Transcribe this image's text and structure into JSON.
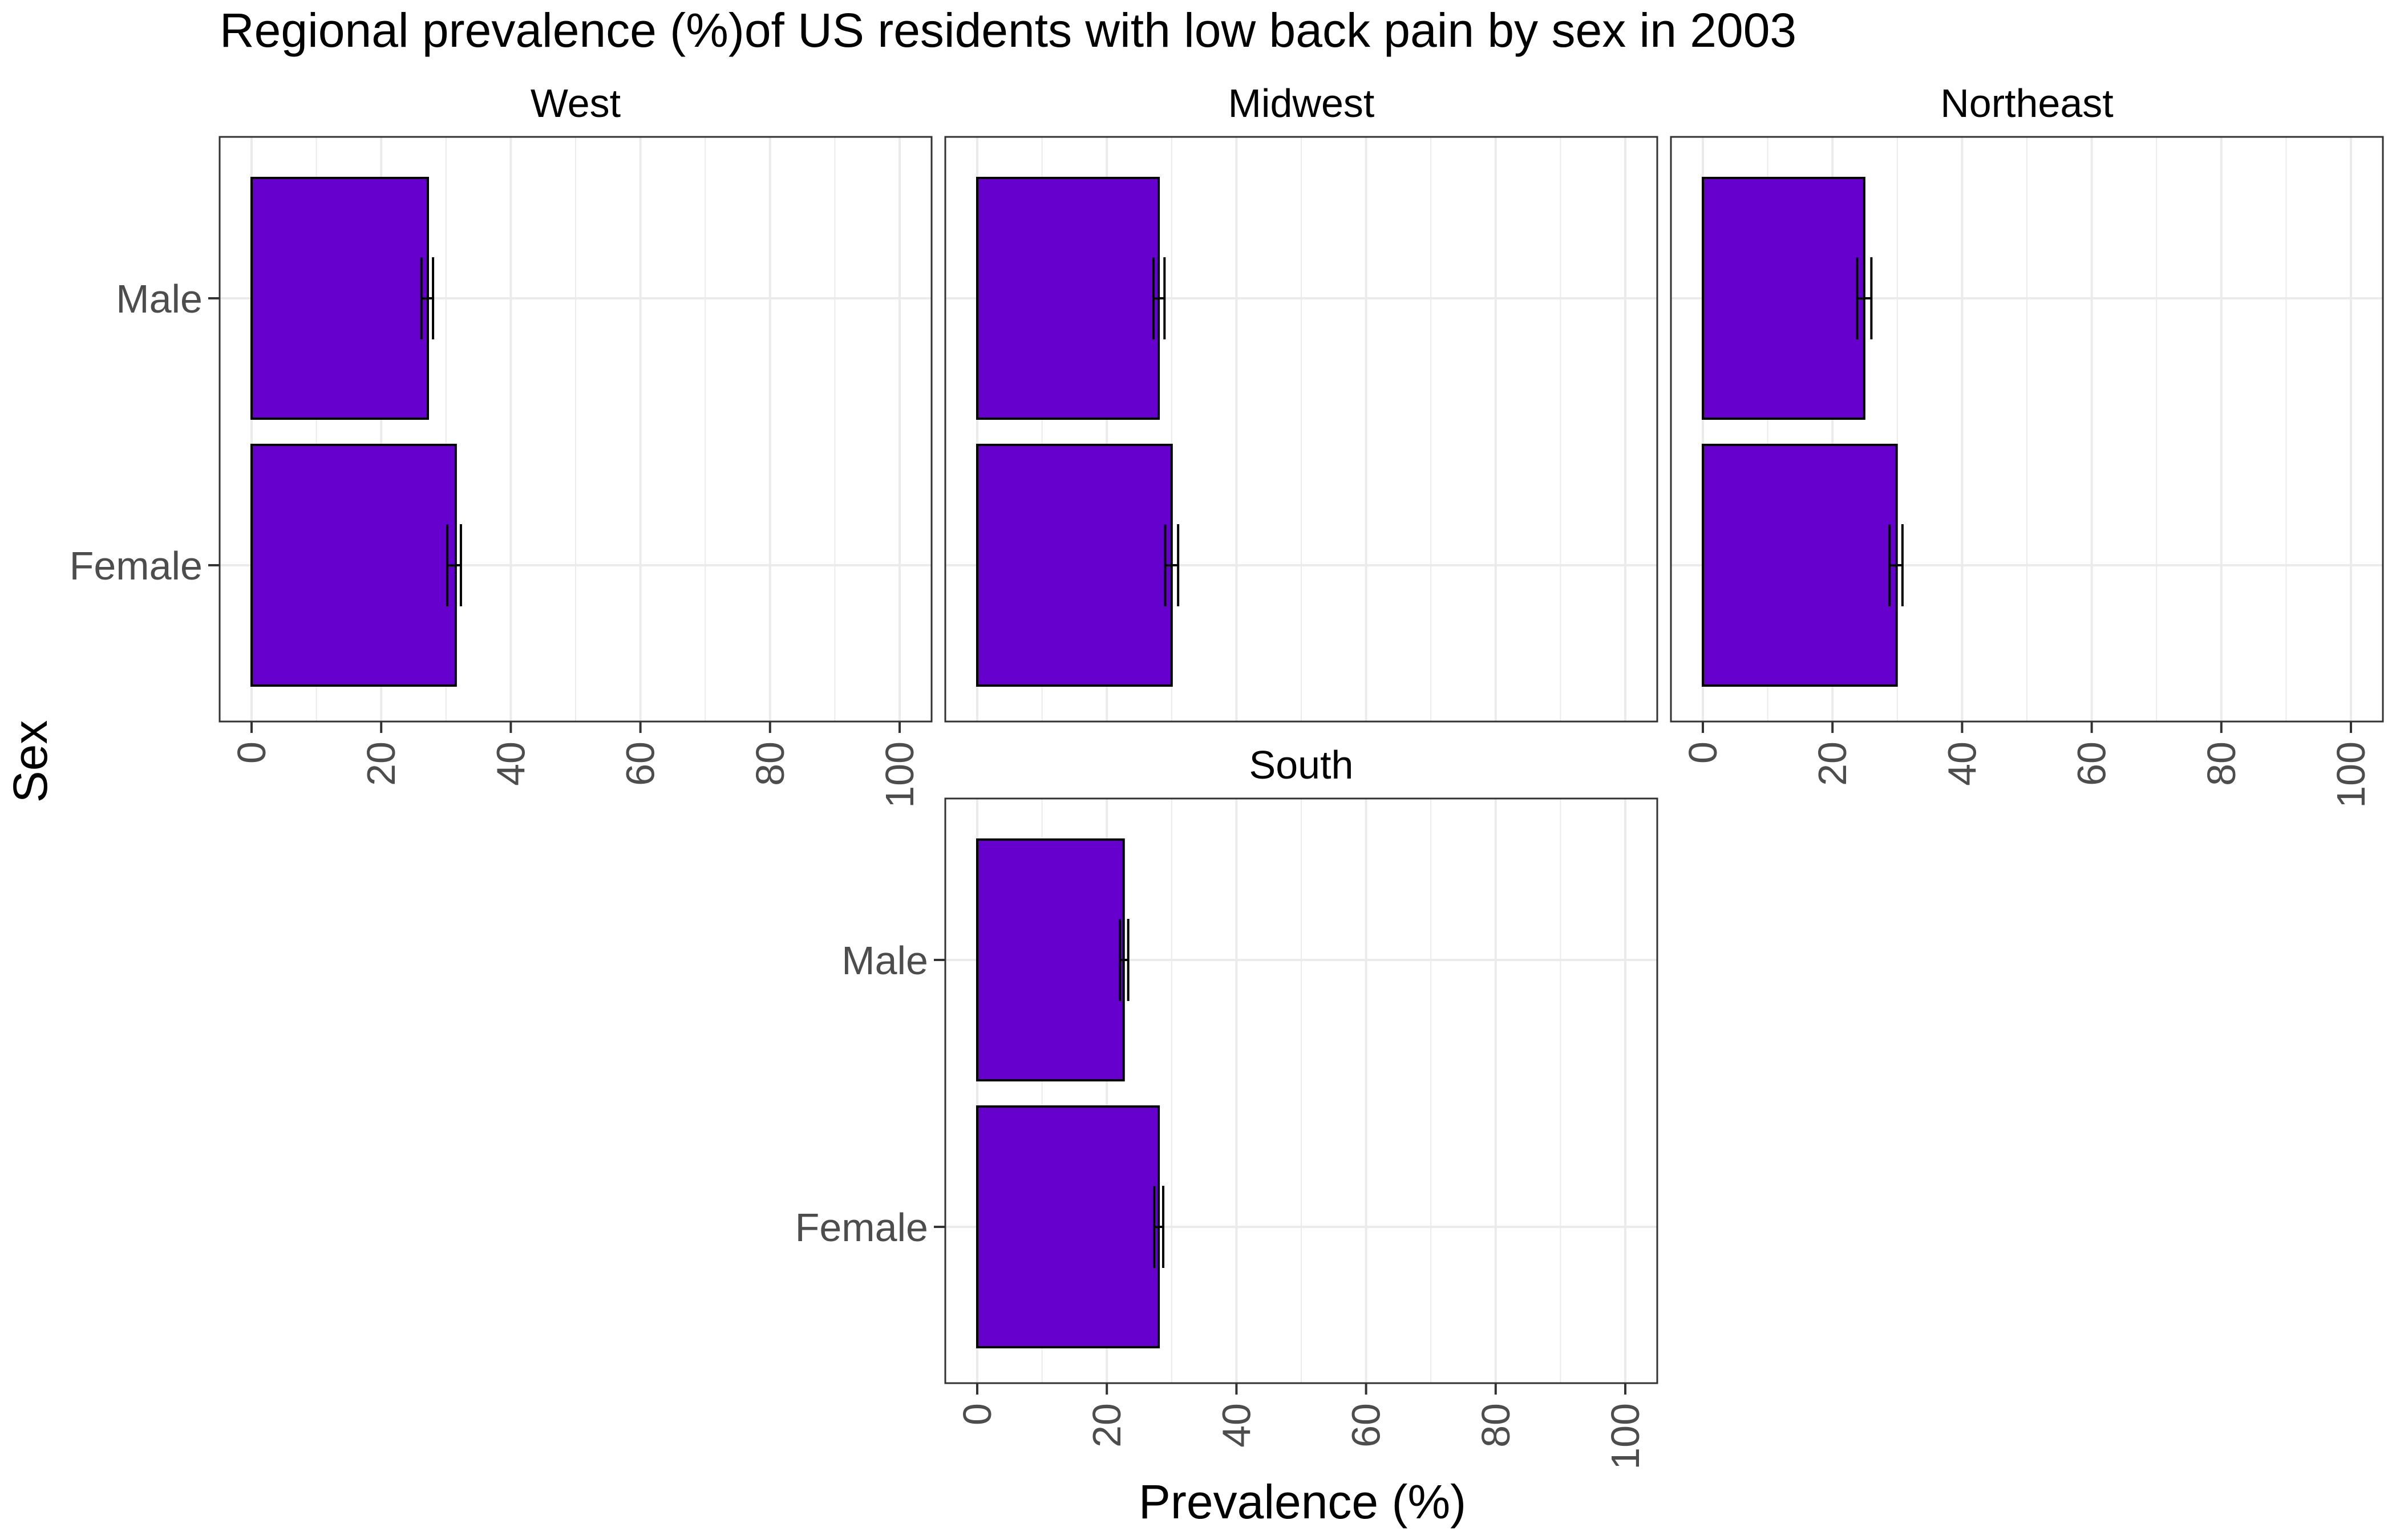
{
  "chart_data": {
    "type": "bar",
    "orientation": "horizontal",
    "title": "Regional prevalence (%)of US residents with low back pain by sex in 2003",
    "xlabel": "Prevalence (%)",
    "ylabel": "Sex",
    "xlim": [
      0,
      100
    ],
    "x_ticks": [
      "0",
      "20",
      "40",
      "60",
      "80",
      "100"
    ],
    "categories": [
      "Male",
      "Female"
    ],
    "grid": true,
    "colors": {
      "bar": "#6600CC",
      "bar_outline": "#000000",
      "error_bar": "#000000",
      "grid": "#ebebeb",
      "panel_border": "#333333"
    },
    "facets": [
      {
        "name": "West",
        "values": [
          27.2,
          31.5
        ],
        "ci_low": [
          26.2,
          30.2
        ],
        "ci_high": [
          28.0,
          32.3
        ]
      },
      {
        "name": "Midwest",
        "values": [
          28.0,
          30.0
        ],
        "ci_low": [
          27.2,
          29.0
        ],
        "ci_high": [
          28.9,
          31.0
        ]
      },
      {
        "name": "Northeast",
        "values": [
          24.9,
          29.9
        ],
        "ci_low": [
          23.8,
          28.8
        ],
        "ci_high": [
          26.0,
          30.8
        ]
      },
      {
        "name": "South",
        "values": [
          22.6,
          28.0
        ],
        "ci_low": [
          22.0,
          27.3
        ],
        "ci_high": [
          23.3,
          28.7
        ]
      }
    ]
  }
}
